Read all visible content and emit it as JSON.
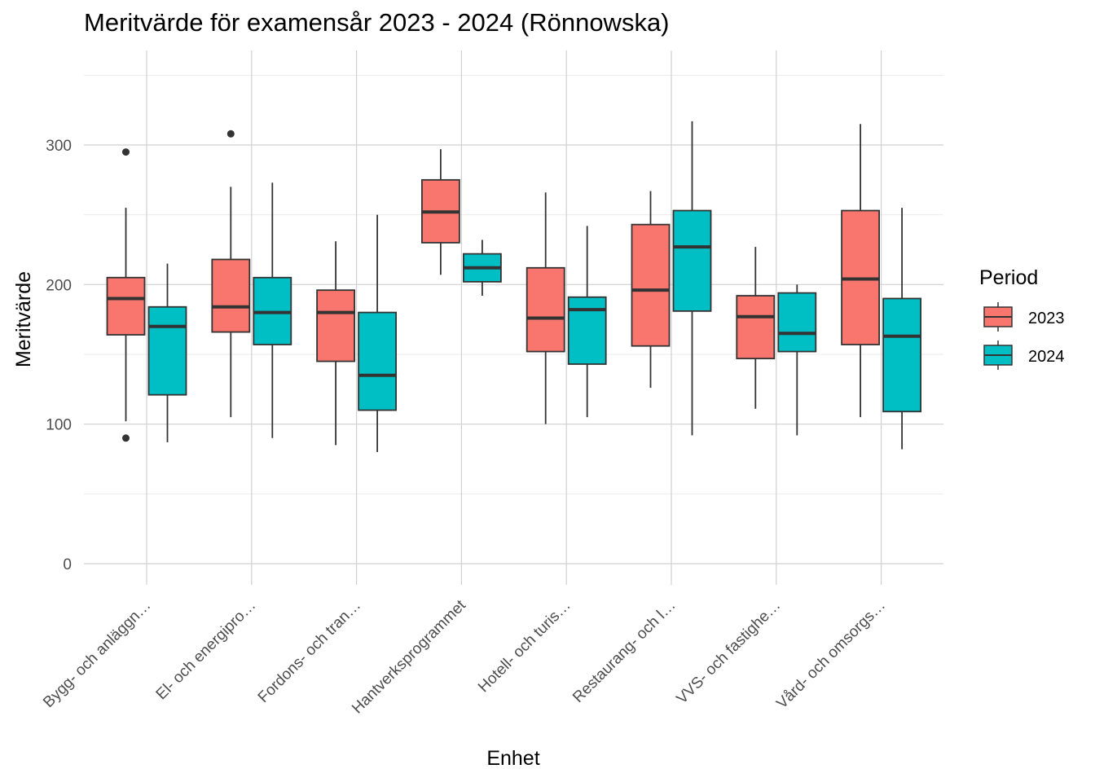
{
  "chart_data": {
    "type": "boxplot",
    "title": "Meritvärde för examensår 2023 - 2024 (Rönnowska)",
    "xlabel": "Enhet",
    "ylabel": "Meritvärde",
    "ylim": [
      -15,
      350
    ],
    "yticks": [
      0,
      100,
      200,
      300
    ],
    "grid": true,
    "legend": {
      "title": "Period",
      "position": "right"
    },
    "categories": [
      "Bygg- och anläggn…",
      "El- och energipro…",
      "Fordons- och tran…",
      "Hantverksprogrammet",
      "Hotell- och turis…",
      "Restaurang- och l…",
      "VVS- och fastighe…",
      "Vård- och omsorgs…"
    ],
    "series": [
      {
        "name": "2023",
        "color": "#F8766D",
        "boxes": [
          {
            "min": 102,
            "q1": 164,
            "median": 190,
            "q3": 205,
            "max": 255,
            "outliers": [
              295,
              90
            ]
          },
          {
            "min": 105,
            "q1": 166,
            "median": 184,
            "q3": 218,
            "max": 270,
            "outliers": [
              308
            ]
          },
          {
            "min": 85,
            "q1": 145,
            "median": 180,
            "q3": 196,
            "max": 231,
            "outliers": []
          },
          {
            "min": 207,
            "q1": 230,
            "median": 252,
            "q3": 275,
            "max": 297,
            "outliers": []
          },
          {
            "min": 100,
            "q1": 152,
            "median": 176,
            "q3": 212,
            "max": 266,
            "outliers": []
          },
          {
            "min": 126,
            "q1": 156,
            "median": 196,
            "q3": 243,
            "max": 267,
            "outliers": []
          },
          {
            "min": 111,
            "q1": 147,
            "median": 177,
            "q3": 192,
            "max": 227,
            "outliers": []
          },
          {
            "min": 105,
            "q1": 157,
            "median": 204,
            "q3": 253,
            "max": 315,
            "outliers": []
          }
        ]
      },
      {
        "name": "2024",
        "color": "#00BFC4",
        "boxes": [
          {
            "min": 87,
            "q1": 121,
            "median": 170,
            "q3": 184,
            "max": 215,
            "outliers": []
          },
          {
            "min": 90,
            "q1": 157,
            "median": 180,
            "q3": 205,
            "max": 273,
            "outliers": []
          },
          {
            "min": 80,
            "q1": 110,
            "median": 135,
            "q3": 180,
            "max": 250,
            "outliers": []
          },
          {
            "min": 192,
            "q1": 202,
            "median": 212,
            "q3": 222,
            "max": 232,
            "outliers": []
          },
          {
            "min": 105,
            "q1": 143,
            "median": 182,
            "q3": 191,
            "max": 242,
            "outliers": []
          },
          {
            "min": 92,
            "q1": 181,
            "median": 227,
            "q3": 253,
            "max": 317,
            "outliers": []
          },
          {
            "min": 92,
            "q1": 152,
            "median": 165,
            "q3": 194,
            "max": 200,
            "outliers": []
          },
          {
            "min": 82,
            "q1": 109,
            "median": 163,
            "q3": 190,
            "max": 255,
            "outliers": []
          }
        ]
      }
    ]
  }
}
